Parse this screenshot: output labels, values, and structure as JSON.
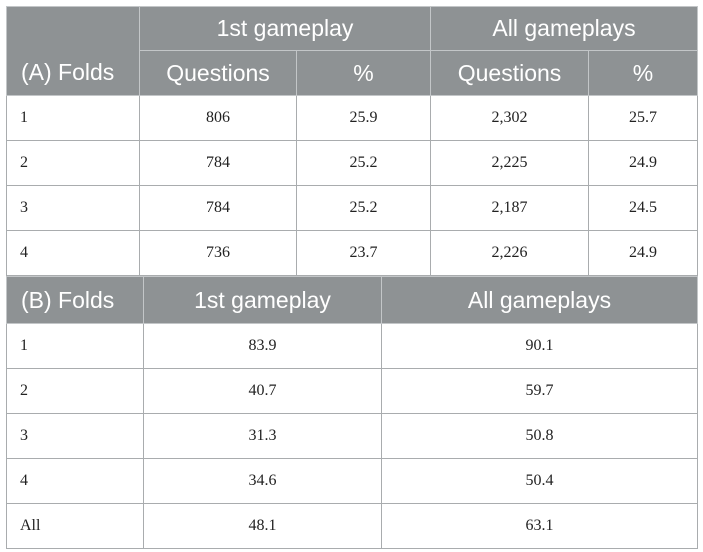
{
  "table_a": {
    "row_header": "(A) Folds",
    "group_headers": [
      "1st gameplay",
      "All gameplays"
    ],
    "sub_headers": [
      "Questions",
      "%",
      "Questions",
      "%"
    ],
    "rows": [
      {
        "fold": "1",
        "first_questions": "806",
        "first_pct": "25.9",
        "all_questions": "2,302",
        "all_pct": "25.7"
      },
      {
        "fold": "2",
        "first_questions": "784",
        "first_pct": "25.2",
        "all_questions": "2,225",
        "all_pct": "24.9"
      },
      {
        "fold": "3",
        "first_questions": "784",
        "first_pct": "25.2",
        "all_questions": "2,187",
        "all_pct": "24.5"
      },
      {
        "fold": "4",
        "first_questions": "736",
        "first_pct": "23.7",
        "all_questions": "2,226",
        "all_pct": "24.9"
      }
    ]
  },
  "table_b": {
    "row_header": "(B) Folds",
    "col_headers": [
      "1st gameplay",
      "All gameplays"
    ],
    "rows": [
      {
        "fold": "1",
        "first": "83.9",
        "all": "90.1"
      },
      {
        "fold": "2",
        "first": "40.7",
        "all": "59.7"
      },
      {
        "fold": "3",
        "first": "31.3",
        "all": "50.8"
      },
      {
        "fold": "4",
        "first": "34.6",
        "all": "50.4"
      },
      {
        "fold": "All",
        "first": "48.1",
        "all": "63.1"
      }
    ]
  },
  "colors": {
    "header_bg": "#8e9294",
    "header_text": "#ffffff",
    "grid_line": "#a9acae"
  }
}
